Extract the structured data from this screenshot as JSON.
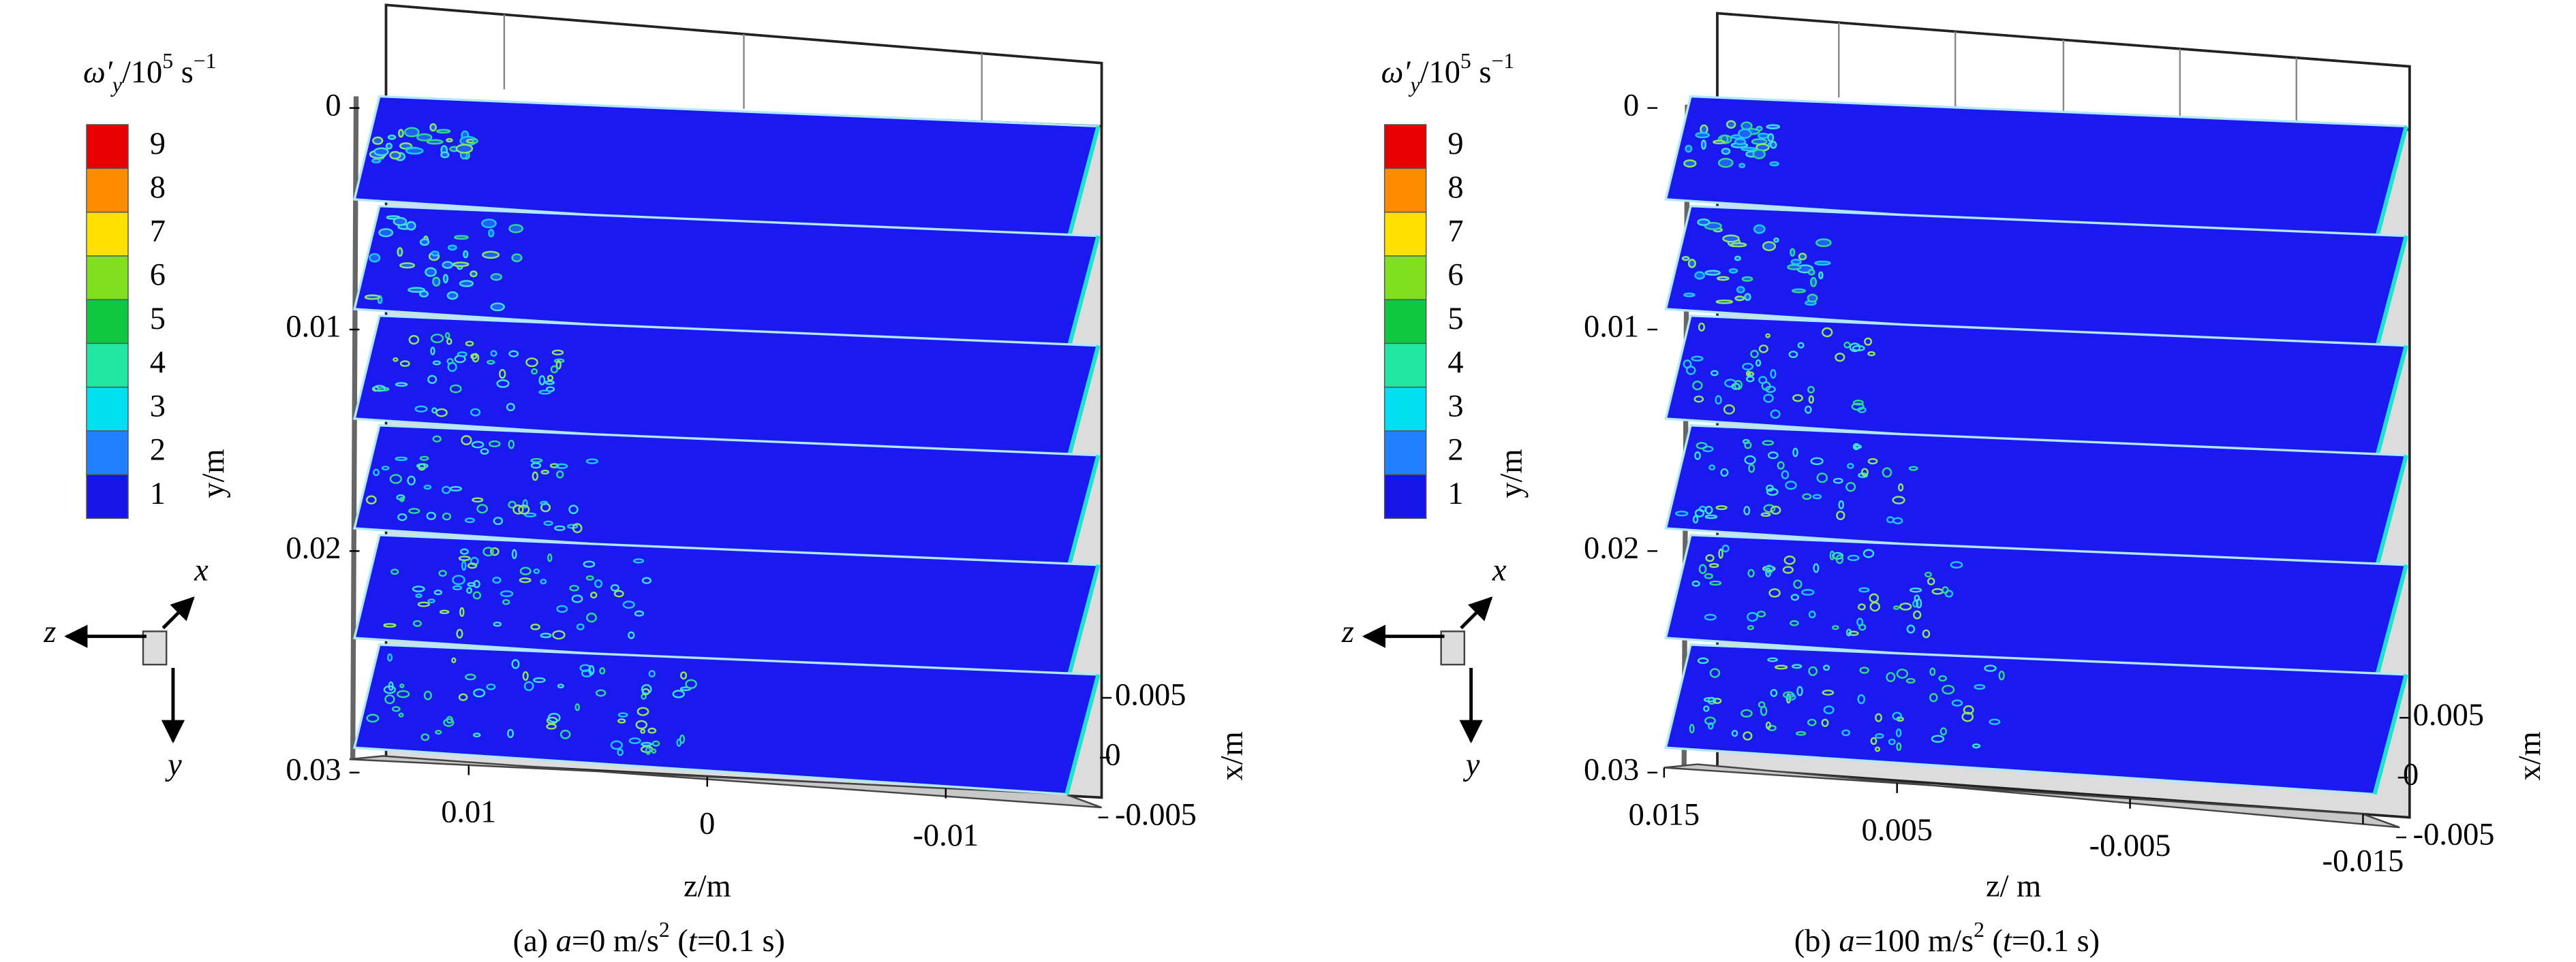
{
  "chart_data": [
    {
      "type": "contour-slices",
      "colorbar_title": [
        "ω′",
        "y",
        "/10",
        "5",
        " s",
        "−1"
      ],
      "levels": [
        1,
        2,
        3,
        4,
        5,
        6,
        7,
        8,
        9
      ],
      "colors": [
        "#1515e8",
        "#2080ff",
        "#00e0f0",
        "#20e8a0",
        "#10c840",
        "#80e020",
        "#ffe000",
        "#ff8c00",
        "#e80000"
      ],
      "ylabel": "y/m",
      "ylim": [
        0,
        0.03
      ],
      "yticks": [
        0,
        0.01,
        0.02,
        0.03
      ],
      "zlabel": "z/m",
      "zlim": [
        0.015,
        -0.015
      ],
      "zticks": [
        0.01,
        0,
        -0.01
      ],
      "xlabel": "x/m",
      "xlim": [
        -0.005,
        0.005
      ],
      "xticks": [
        0.005,
        0,
        -0.005
      ],
      "axis_triad": {
        "x": "x",
        "z": "z",
        "y": "y"
      },
      "caption": [
        "(a) ",
        "a",
        "=0 m/s",
        "2",
        " (",
        "t",
        "=0.1 s)"
      ]
    },
    {
      "type": "contour-slices",
      "colorbar_title": [
        "ω′",
        "y",
        "/10",
        "5",
        " s",
        "−1"
      ],
      "levels": [
        1,
        2,
        3,
        4,
        5,
        6,
        7,
        8,
        9
      ],
      "colors": [
        "#1515e8",
        "#2080ff",
        "#00e0f0",
        "#20e8a0",
        "#10c840",
        "#80e020",
        "#ffe000",
        "#ff8c00",
        "#e80000"
      ],
      "ylabel": "y/m",
      "ylim": [
        0,
        0.03
      ],
      "yticks": [
        0,
        0.01,
        0.02,
        0.03
      ],
      "zlabel": "z/ m",
      "zlim": [
        0.015,
        -0.015
      ],
      "zticks": [
        0.015,
        0.005,
        -0.005,
        -0.015
      ],
      "xlabel": "x/m",
      "xlim": [
        -0.005,
        0.005
      ],
      "xticks": [
        0.005,
        0,
        -0.005
      ],
      "axis_triad": {
        "x": "x",
        "z": "z",
        "y": "y"
      },
      "caption": [
        "(b) ",
        "a",
        "=100 m/s",
        "2",
        " (",
        "t",
        "=0.1 s)"
      ]
    }
  ]
}
